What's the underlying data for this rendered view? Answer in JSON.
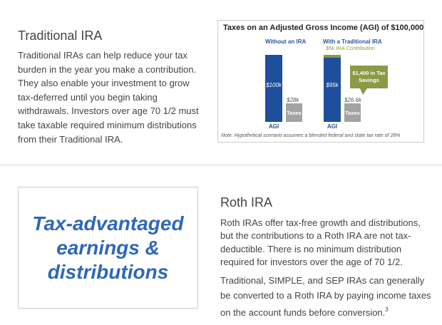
{
  "traditional": {
    "title": "Traditional IRA",
    "text": "Traditional IRAs can help reduce your tax burden in the year you make a contribution. They also enable your investment to grow tax-deferred until you begin taking withdrawals. Investors over age 70 1/2 must take taxable required minimum distributions from their Traditional IRA."
  },
  "chart": {
    "title": "Taxes on an Adjusted Gross Income (AGI) of $100,000",
    "group1_label": "Without an IRA",
    "group2_label": "With a Traditional IRA",
    "contribution_label": "$5k IRA Contribution",
    "agi1": "$100k",
    "tax1": "$28k",
    "agi2": "$95k",
    "tax2": "$26.6k",
    "agi_label": "AGI",
    "taxes_label": "Taxes",
    "callout": "$1,400 in Tax Savings",
    "note": "Note: Hypothetical scenario assumes a blended federal and state tax rate of 28%",
    "colors": {
      "agi": "#1e4f9c",
      "taxes": "#a3a3a3",
      "contribution": "#8a9a45"
    }
  },
  "tagline": "Tax-advantaged earnings & distributions",
  "roth": {
    "title": "Roth IRA",
    "p1": "Roth IRAs offer tax-free growth and distributions, but the contributions to a Roth IRA are not tax-deductible. There is no minimum distribution required for investors over the age of 70 1/2.",
    "p2": "Traditional, SIMPLE, and SEP IRAs can generally be converted to a Roth IRA by paying income taxes on the account funds before conversion.",
    "footnote": "3"
  }
}
